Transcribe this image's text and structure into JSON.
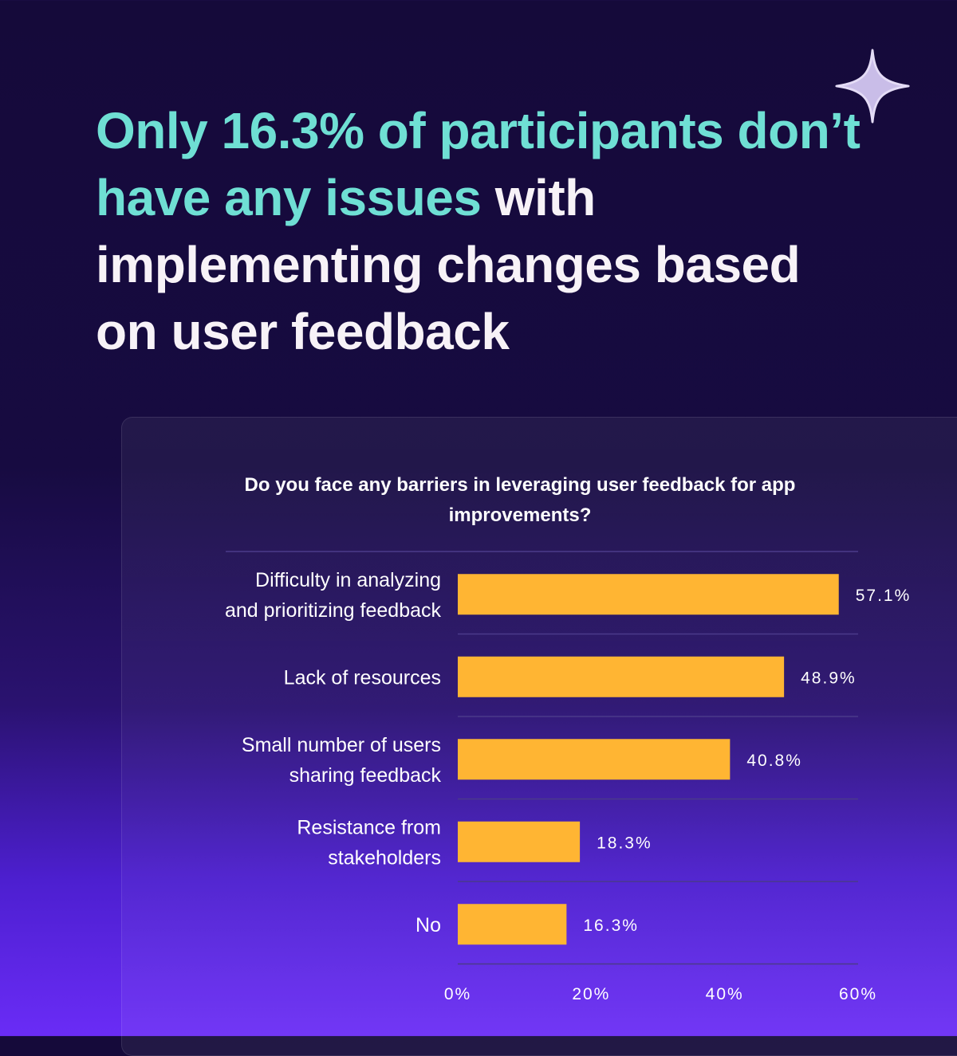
{
  "headline": {
    "highlight": "Only 16.3% of participants don’t have any issues",
    "rest": " with implementing changes based on user feedback"
  },
  "decoration": {
    "icon": "sparkle-icon",
    "color": "#c9bde8"
  },
  "colors": {
    "bar": "#ffb533",
    "grid": "#4b3a8a",
    "text": "#ffffff",
    "accent": "#6fdfd4"
  },
  "chart_data": {
    "type": "bar",
    "orientation": "horizontal",
    "title": "Do you face any barriers in leveraging user feedback for app improvements?",
    "categories": [
      [
        "Difficulty in analyzing",
        "and prioritizing feedback"
      ],
      [
        "Lack of resources"
      ],
      [
        "Small number of users",
        "sharing feedback"
      ],
      [
        "Resistance from",
        "stakeholders"
      ],
      [
        "No"
      ]
    ],
    "values": [
      57.1,
      48.9,
      40.8,
      18.3,
      16.3
    ],
    "value_labels": [
      "57.1%",
      "48.9%",
      "40.8%",
      "18.3%",
      "16.3%"
    ],
    "xlim": [
      0,
      60
    ],
    "xticks": [
      0,
      20,
      40,
      60
    ],
    "xtick_labels": [
      "0%",
      "20%",
      "40%",
      "60%"
    ],
    "grid": true,
    "legend": "none"
  }
}
